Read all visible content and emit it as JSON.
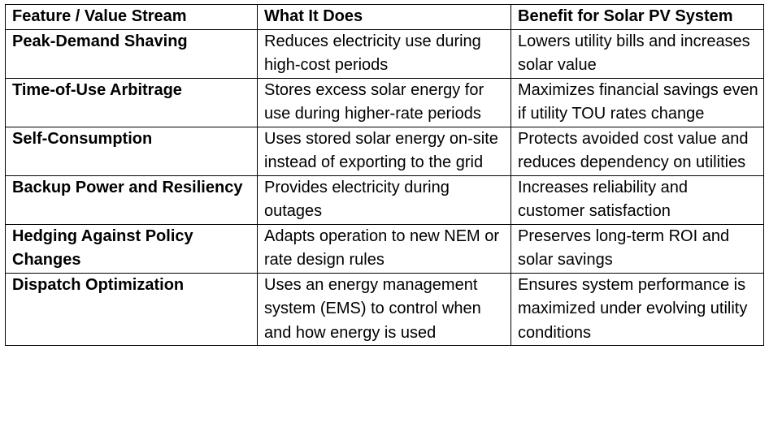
{
  "table": {
    "headers": [
      "Feature / Value Stream",
      "What It Does",
      "Benefit for Solar PV System"
    ],
    "rows": [
      {
        "feature": "Peak-Demand Shaving",
        "what": "Reduces electricity use during high-cost periods",
        "benefit": "Lowers utility bills and increases solar value"
      },
      {
        "feature": "Time-of-Use Arbitrage",
        "what": "Stores excess solar energy for use during higher-rate periods",
        "benefit": "Maximizes financial savings even if utility TOU rates change"
      },
      {
        "feature": "Self-Consumption",
        "what": "Uses stored solar energy on-site instead of exporting to the grid",
        "benefit": "Protects avoided cost value and reduces dependency on utilities"
      },
      {
        "feature": "Backup Power and Resiliency",
        "what": "Provides electricity during outages",
        "benefit": "Increases reliability and customer satisfaction"
      },
      {
        "feature": "Hedging Against Policy Changes",
        "what": "Adapts operation to new NEM or rate design rules",
        "benefit": "Preserves long-term ROI and solar savings"
      },
      {
        "feature": "Dispatch Optimization",
        "what": "Uses an energy management system (EMS) to control when and how energy is used",
        "benefit": "Ensures system performance is maximized under evolving utility conditions"
      }
    ]
  }
}
